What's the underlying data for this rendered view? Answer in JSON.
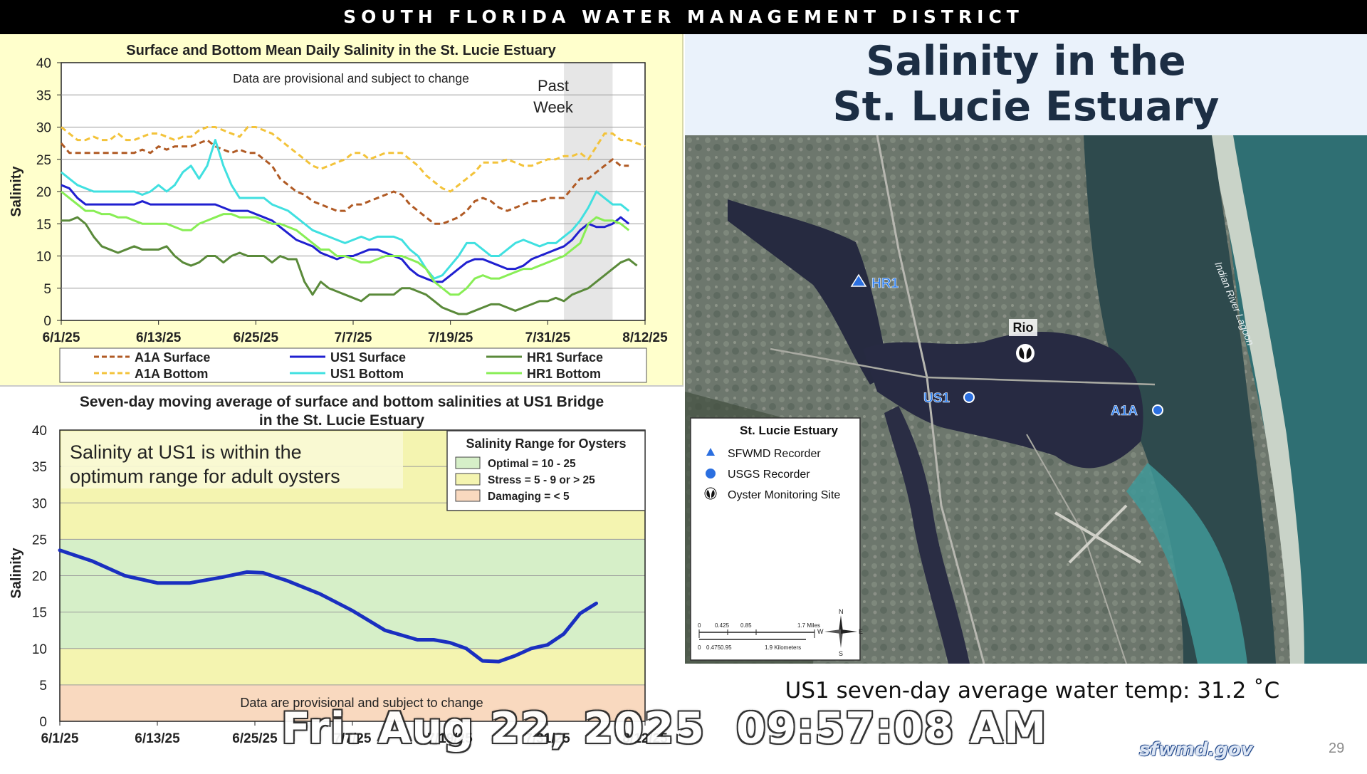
{
  "header": {
    "title": "SOUTH FLORIDA WATER MANAGEMENT DISTRICT"
  },
  "slide": {
    "title_line1": "Salinity in the",
    "title_line2": "St. Lucie Estuary",
    "temp_text": "US1 seven-day average water temp: 31.2 ˚C",
    "page_number": "29",
    "logo_text": "sfwmd.gov",
    "timestamp": "Fri. Aug 22, 2025  09:57:08 AM"
  },
  "map": {
    "labels": {
      "hr1": "HR1",
      "us1": "US1",
      "a1a": "A1A",
      "rio": "Rio",
      "indian_river": "Indian River Lagoon"
    },
    "legend": {
      "title": "St. Lucie Estuary",
      "items": [
        {
          "label": "SFWMD Recorder",
          "icon": "triangle-icon"
        },
        {
          "label": "USGS Recorder",
          "icon": "dot-icon"
        },
        {
          "label": "Oyster Monitoring Site",
          "icon": "oyster-icon"
        }
      ],
      "scale_miles": [
        "0",
        "0.425",
        "0.85",
        "1.7 Miles"
      ],
      "scale_km": [
        "0",
        "0.475",
        "0.95",
        "1.9 Kilometers"
      ],
      "compass": {
        "n": "N",
        "s": "S",
        "e": "E",
        "w": "W"
      }
    },
    "colors": {
      "water": "#2b2f45",
      "ocean": "#2f6f73",
      "land": "#6f7a70",
      "recorder_blue": "#1a66e0"
    }
  },
  "chart_data": [
    {
      "type": "line",
      "title": "Surface and Bottom Mean Daily Salinity in the St. Lucie Estuary",
      "annotation": "Data are provisional and subject to change",
      "shaded_region": {
        "label_line1": "Past",
        "label_line2": "Week",
        "x_range": [
          62,
          68
        ]
      },
      "ylabel": "Salinity",
      "xlabel": "",
      "ylim": [
        0,
        40
      ],
      "yticks": [
        "0",
        "5",
        "10",
        "15",
        "20",
        "25",
        "30",
        "35",
        "40"
      ],
      "xlim": [
        0,
        72
      ],
      "xtick_positions": [
        0,
        12,
        24,
        36,
        48,
        60,
        72
      ],
      "xtick_labels": [
        "6/1/25",
        "6/13/25",
        "6/25/25",
        "7/7/25",
        "7/19/25",
        "7/31/25",
        "8/12/25"
      ],
      "grid": true,
      "legend_position": "bottom",
      "series": [
        {
          "name": "A1A Surface",
          "color": "#b05a24",
          "dash": "dashed",
          "values": [
            27.5,
            26,
            26,
            26,
            26,
            26,
            26,
            26,
            26,
            26,
            26.5,
            26,
            27,
            26.5,
            27,
            27,
            27,
            27.5,
            28,
            27,
            26.5,
            26,
            26.5,
            26,
            26,
            25,
            24,
            22,
            21,
            20,
            19.5,
            18.5,
            18,
            17.5,
            17,
            17,
            18,
            18,
            18.5,
            19,
            19.5,
            20,
            19.5,
            18,
            17,
            16,
            15,
            15,
            15.5,
            16,
            17,
            18.5,
            19,
            18.5,
            17.5,
            17,
            17.5,
            18,
            18.5,
            18.5,
            19,
            19,
            19,
            20.5,
            22,
            22,
            23,
            24,
            25,
            24,
            24
          ]
        },
        {
          "name": "A1A Bottom",
          "color": "#f3c33a",
          "dash": "dashed",
          "values": [
            30,
            29,
            28,
            28,
            28.5,
            28,
            28,
            29,
            28,
            28,
            28.5,
            29,
            29,
            28.5,
            28,
            28.5,
            28.5,
            29.5,
            30,
            30,
            29.5,
            29,
            28.5,
            30,
            30,
            29.5,
            29,
            28,
            27,
            26,
            25,
            24,
            23.5,
            24,
            24.5,
            25,
            26,
            26,
            25,
            25.5,
            26,
            26,
            26,
            25,
            24,
            22.5,
            21.5,
            20.5,
            20,
            21,
            22,
            23,
            24.5,
            24.5,
            24.5,
            25,
            24.5,
            24,
            24,
            24.5,
            25,
            25,
            25.5,
            25.5,
            26,
            25,
            27,
            29,
            29,
            28,
            28,
            27.5,
            27
          ]
        },
        {
          "name": "US1 Surface",
          "color": "#2020d0",
          "dash": "solid",
          "values": [
            21,
            20.5,
            19,
            18,
            18,
            18,
            18,
            18,
            18,
            18,
            18.5,
            18,
            18,
            18,
            18,
            18,
            18,
            18,
            18,
            18,
            17.5,
            17,
            17,
            17,
            16.5,
            16,
            15.5,
            14.5,
            13.5,
            12.5,
            12,
            11.5,
            10.5,
            10,
            9.5,
            10,
            10,
            10.5,
            11,
            11,
            10.5,
            10,
            9.5,
            8,
            7,
            6.5,
            6,
            6,
            7,
            8,
            9,
            9.5,
            9.5,
            9,
            8.5,
            8,
            8,
            8.5,
            9.5,
            10,
            10.5,
            11,
            11.5,
            12.5,
            14,
            15,
            14.5,
            14.5,
            15,
            16,
            15
          ]
        },
        {
          "name": "US1 Bottom",
          "color": "#40e0e0",
          "dash": "solid",
          "values": [
            23,
            22,
            21,
            20.5,
            20,
            20,
            20,
            20,
            20,
            20,
            19.5,
            20,
            21,
            20,
            21,
            23,
            24,
            22,
            24,
            28,
            24,
            21,
            19,
            19,
            19,
            19,
            18,
            17.5,
            17,
            16,
            15,
            14,
            13.5,
            13,
            12.5,
            12,
            12.5,
            13,
            12.5,
            13,
            13,
            13,
            12.5,
            11,
            10,
            8,
            6.5,
            7,
            8.5,
            10,
            12,
            12,
            11,
            10,
            10,
            11,
            12,
            12.5,
            12,
            11.5,
            12,
            12,
            13,
            14,
            15.5,
            17.5,
            20,
            19,
            18,
            18,
            17
          ]
        },
        {
          "name": "HR1 Surface",
          "color": "#5a8a3a",
          "dash": "solid",
          "values": [
            15.5,
            15.5,
            16,
            15,
            13,
            11.5,
            11,
            10.5,
            11,
            11.5,
            11,
            11,
            11,
            11.5,
            10,
            9,
            8.5,
            9,
            10,
            10,
            9,
            10,
            10.5,
            10,
            10,
            10,
            9,
            10,
            9.5,
            9.5,
            6,
            4,
            6,
            5,
            4.5,
            4,
            3.5,
            3,
            4,
            4,
            4,
            4,
            5,
            5,
            4.5,
            4,
            3,
            2,
            1.5,
            1,
            1,
            1.5,
            2,
            2.5,
            2.5,
            2,
            1.5,
            2,
            2.5,
            3,
            3,
            3.5,
            3,
            4,
            4.5,
            5,
            6,
            7,
            8,
            9,
            9.5,
            8.5
          ]
        },
        {
          "name": "HR1 Bottom",
          "color": "#88ee55",
          "dash": "solid",
          "values": [
            20,
            19,
            18,
            17,
            17,
            16.5,
            16.5,
            16,
            16,
            15.5,
            15,
            15,
            15,
            15,
            14.5,
            14,
            14,
            15,
            15.5,
            16,
            16.5,
            16.5,
            16,
            16,
            16,
            15.5,
            15,
            15,
            14.5,
            14,
            13,
            12,
            11,
            11,
            10,
            10,
            9.5,
            9,
            9,
            9.5,
            10,
            10,
            10,
            9.5,
            9,
            8,
            6,
            5,
            4,
            4,
            5,
            6.5,
            7,
            6.5,
            6.5,
            7,
            7.5,
            8,
            8,
            8.5,
            9,
            9.5,
            10,
            11,
            12,
            15,
            16,
            15.5,
            15.5,
            15,
            14
          ]
        }
      ]
    },
    {
      "type": "line",
      "title": "Seven-day moving average of surface and bottom salinities at US1 Bridge in the St. Lucie Estuary",
      "callout": {
        "line1": "Salinity at US1 is within the",
        "line2": "optimum range for adult oysters"
      },
      "annotation": "Data are  provisional and subject to change",
      "ylabel": "Salinity",
      "xlabel": "",
      "ylim": [
        0,
        40
      ],
      "yticks": [
        "0",
        "5",
        "10",
        "15",
        "20",
        "25",
        "30",
        "35",
        "40"
      ],
      "xlim": [
        0,
        72
      ],
      "xtick_positions": [
        0,
        12,
        24,
        36,
        48,
        60,
        72
      ],
      "xtick_labels": [
        "6/1/25",
        "6/13/25",
        "6/25/25",
        "7/7/25",
        "7/19/25",
        "7/31/25",
        "8/12/25"
      ],
      "grid": true,
      "bands": [
        {
          "range": [
            0,
            5
          ],
          "color": "#f9d9bf"
        },
        {
          "range": [
            5,
            10
          ],
          "color": "#f4f4b0"
        },
        {
          "range": [
            10,
            25
          ],
          "color": "#d6efc8"
        },
        {
          "range": [
            25,
            40
          ],
          "color": "#f4f4b0"
        }
      ],
      "legend": {
        "title": "Salinity Range for Oysters",
        "position": "top-right",
        "items": [
          {
            "label": "Optimal = 10 - 25",
            "color": "#d6efc8"
          },
          {
            "label": "Stress = 5 - 9 or > 25",
            "color": "#f4f4b0"
          },
          {
            "label": "Damaging = < 5",
            "color": "#f9d9bf"
          }
        ]
      },
      "series": [
        {
          "name": "",
          "color": "#1a2fc0",
          "x": [
            0,
            4,
            8,
            12,
            16,
            20,
            23,
            25,
            28,
            32,
            36,
            40,
            44,
            46,
            48,
            50,
            52,
            54,
            56,
            58,
            60,
            62,
            64,
            66
          ],
          "values": [
            23.5,
            22,
            20,
            19,
            19,
            19.8,
            20.5,
            20.4,
            19.3,
            17.5,
            15.2,
            12.5,
            11.2,
            11.2,
            10.8,
            10,
            8.3,
            8.2,
            9,
            10,
            10.5,
            12,
            14.8,
            16.2
          ]
        }
      ]
    }
  ]
}
